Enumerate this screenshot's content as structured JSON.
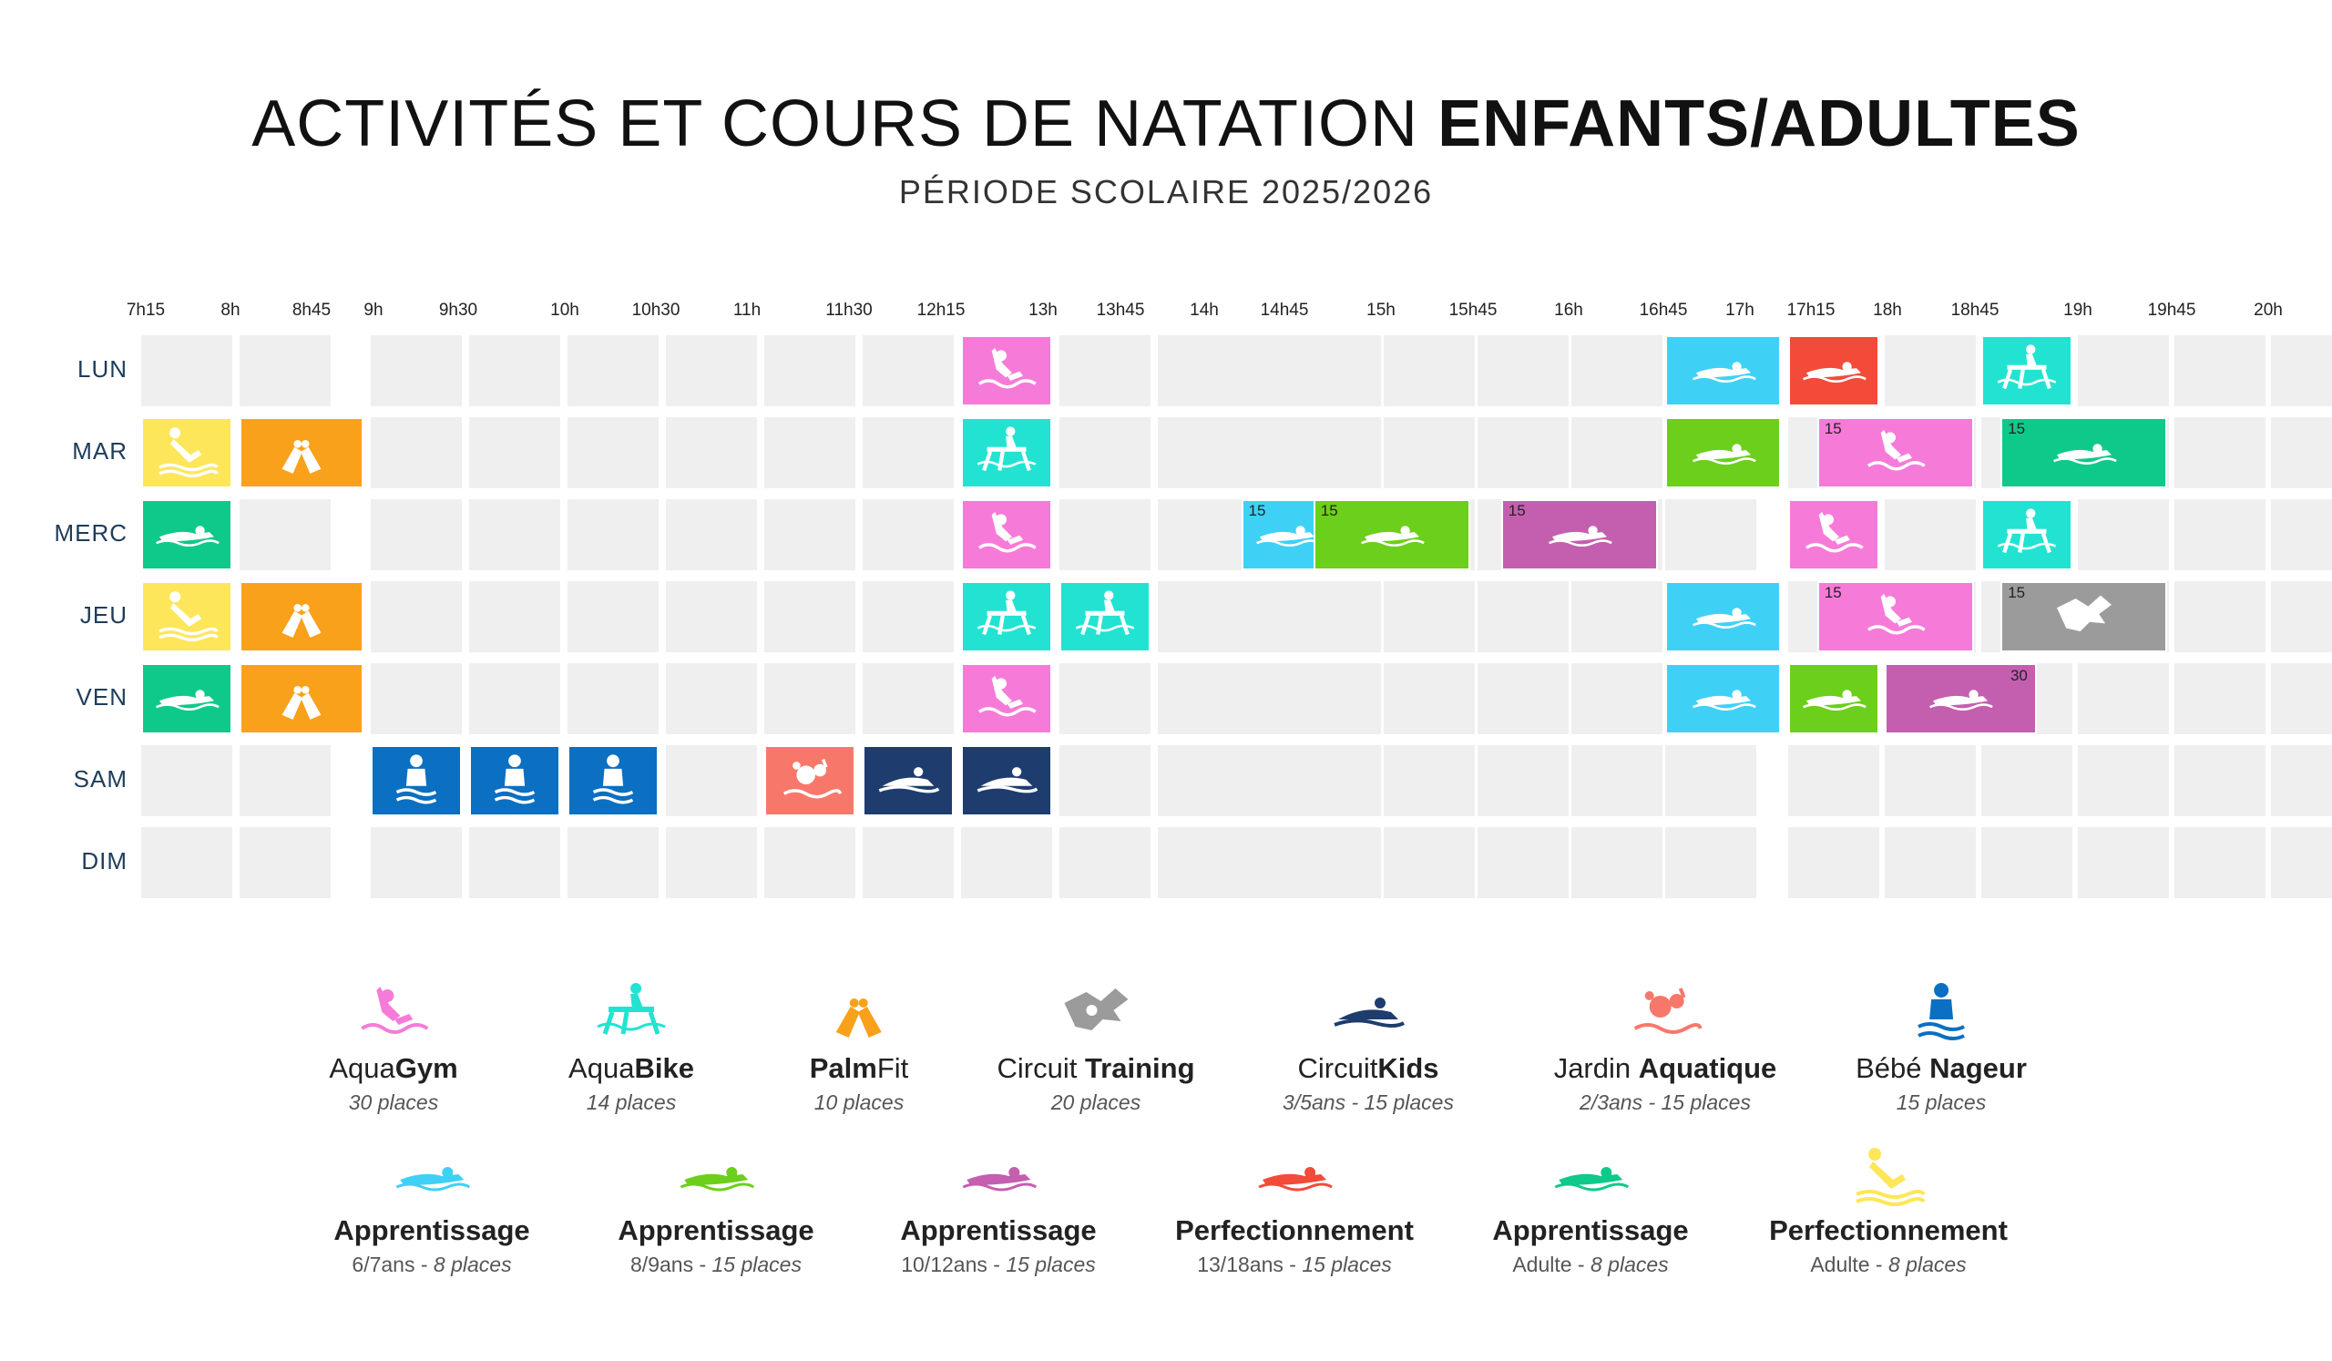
{
  "header": {
    "title_light": "ACTIVITÉS ET COURS DE NATATION",
    "title_bold": "ENFANTS/ADULTES",
    "subtitle": "PÉRIODE SCOLAIRE 2025/2026"
  },
  "time_labels": [
    "7h15",
    "8h",
    "8h45",
    "9h",
    "9h30",
    "10h",
    "10h30",
    "11h",
    "11h30",
    "12h15",
    "13h",
    "13h45",
    "14h",
    "14h45",
    "15h",
    "15h45",
    "16h",
    "16h45",
    "17h",
    "17h15",
    "18h",
    "18h45",
    "19h",
    "19h45",
    "20h"
  ],
  "days": [
    "LUN",
    "MAR",
    "MERC",
    "JEU",
    "VEN",
    "SAM",
    "DIM"
  ],
  "colors": {
    "aquagym": "#f67bd8",
    "aquabike": "#22e3d2",
    "palmfit": "#f9a11b",
    "circuit_training": "#9b9b9b",
    "circuitkids": "#1e3d6e",
    "jardin_aquatique": "#f7786a",
    "bebe_nageur": "#0b6fc2",
    "app_6_7": "#3fd1f5",
    "app_8_9": "#6ccf1b",
    "app_10_12": "#c45fb0",
    "perf_13_18": "#f24b3a",
    "app_adulte": "#0fc98a",
    "perf_adulte": "#fde65a",
    "cell": "#efefef"
  },
  "schedule": [
    {
      "day": 0,
      "slot": 8,
      "span": 1,
      "activity": "aquagym",
      "cap": ""
    },
    {
      "day": 0,
      "slot": 17,
      "span": 1,
      "activity": "app_6_7",
      "cap": ""
    },
    {
      "day": 0,
      "slot": 18,
      "span": 1,
      "activity": "perf_13_18",
      "cap": ""
    },
    {
      "day": 0,
      "slot": 20,
      "span": 1,
      "activity": "aquabike",
      "cap": ""
    },
    {
      "day": 1,
      "slot": 0,
      "span": 1,
      "activity": "perf_adulte",
      "cap": ""
    },
    {
      "day": 1,
      "slot": 1,
      "span": 1,
      "activity": "palmfit",
      "cap": ""
    },
    {
      "day": 1,
      "slot": 8,
      "span": 1,
      "activity": "aquabike",
      "cap": ""
    },
    {
      "day": 1,
      "slot": 17,
      "span": 1,
      "activity": "app_8_9",
      "cap": ""
    },
    {
      "day": 1,
      "slot": 18.3,
      "span": 1.7,
      "activity": "aquagym",
      "cap": "15"
    },
    {
      "day": 1,
      "slot": 20.2,
      "span": 1.8,
      "activity": "app_adulte",
      "cap": "15"
    },
    {
      "day": 2,
      "slot": 0,
      "span": 1,
      "activity": "app_adulte",
      "cap": ""
    },
    {
      "day": 2,
      "slot": 8,
      "span": 1,
      "activity": "aquagym",
      "cap": ""
    },
    {
      "day": 2,
      "slot": 11.25,
      "span": 1.75,
      "activity": "app_6_7",
      "cap": "15"
    },
    {
      "day": 2,
      "slot": 13.25,
      "span": 1.75,
      "activity": "app_8_9",
      "cap": "15"
    },
    {
      "day": 2,
      "slot": 15.25,
      "span": 1.75,
      "activity": "app_10_12",
      "cap": "15"
    },
    {
      "day": 2,
      "slot": 18,
      "span": 1,
      "activity": "aquagym",
      "cap": ""
    },
    {
      "day": 2,
      "slot": 20,
      "span": 1,
      "activity": "aquabike",
      "cap": ""
    },
    {
      "day": 3,
      "slot": 0,
      "span": 1,
      "activity": "perf_adulte",
      "cap": ""
    },
    {
      "day": 3,
      "slot": 1,
      "span": 1,
      "activity": "palmfit",
      "cap": ""
    },
    {
      "day": 3,
      "slot": 8,
      "span": 1,
      "activity": "aquabike",
      "cap": ""
    },
    {
      "day": 3,
      "slot": 9,
      "span": 1,
      "activity": "aquabike",
      "cap": ""
    },
    {
      "day": 3,
      "slot": 17,
      "span": 1,
      "activity": "app_6_7",
      "cap": ""
    },
    {
      "day": 3,
      "slot": 18.3,
      "span": 1.7,
      "activity": "aquagym",
      "cap": "15"
    },
    {
      "day": 3,
      "slot": 20.2,
      "span": 1.8,
      "activity": "circuit_training",
      "cap": "15"
    },
    {
      "day": 4,
      "slot": 0,
      "span": 1,
      "activity": "app_adulte",
      "cap": ""
    },
    {
      "day": 4,
      "slot": 1,
      "span": 1,
      "activity": "palmfit",
      "cap": ""
    },
    {
      "day": 4,
      "slot": 8,
      "span": 1,
      "activity": "aquagym",
      "cap": ""
    },
    {
      "day": 4,
      "slot": 17,
      "span": 1,
      "activity": "app_6_7",
      "cap": ""
    },
    {
      "day": 4,
      "slot": 18,
      "span": 1,
      "activity": "app_8_9",
      "cap": ""
    },
    {
      "day": 4,
      "slot": 19,
      "span": 1.65,
      "activity": "app_10_12",
      "cap": "30"
    },
    {
      "day": 5,
      "slot": 2,
      "span": 1,
      "activity": "bebe_nageur",
      "cap": ""
    },
    {
      "day": 5,
      "slot": 3,
      "span": 1,
      "activity": "bebe_nageur",
      "cap": ""
    },
    {
      "day": 5,
      "slot": 4,
      "span": 1,
      "activity": "bebe_nageur",
      "cap": ""
    },
    {
      "day": 5,
      "slot": 6,
      "span": 1,
      "activity": "jardin_aquatique",
      "cap": ""
    },
    {
      "day": 5,
      "slot": 7,
      "span": 1,
      "activity": "circuitkids",
      "cap": ""
    },
    {
      "day": 5,
      "slot": 8,
      "span": 1,
      "activity": "circuitkids",
      "cap": ""
    }
  ],
  "legend_row1": [
    {
      "key": "aquagym",
      "icon": "aquagym-icon",
      "light": "Aqua",
      "bold": "Gym",
      "bold_first": false,
      "sub": "30 places"
    },
    {
      "key": "aquabike",
      "icon": "aquabike-icon",
      "light": "Aqua",
      "bold": "Bike",
      "bold_first": false,
      "sub": "14 places"
    },
    {
      "key": "palmfit",
      "icon": "palmfit-icon",
      "light": "Fit",
      "bold": "Palm",
      "bold_first": true,
      "sub": "10 places"
    },
    {
      "key": "circuit_training",
      "icon": "circuit-training-icon",
      "light": "Circuit ",
      "bold": "Training",
      "bold_first": false,
      "sub": "20 places"
    },
    {
      "key": "circuitkids",
      "icon": "circuitkids-icon",
      "light": "Circuit",
      "bold": "Kids",
      "bold_first": false,
      "sub": "3/5ans - 15 places"
    },
    {
      "key": "jardin_aquatique",
      "icon": "jardin-aquatique-icon",
      "light": "Jardin ",
      "bold": "Aquatique",
      "bold_first": false,
      "sub": "2/3ans - 15 places"
    },
    {
      "key": "bebe_nageur",
      "icon": "bebe-nageur-icon",
      "light": "Bébé ",
      "bold": "Nageur",
      "bold_first": false,
      "sub": "15 places"
    }
  ],
  "legend_row2": [
    {
      "key": "app_6_7",
      "icon": "swimmer-icon",
      "name": "Apprentissage",
      "age": "6/7ans - ",
      "places": "8 places"
    },
    {
      "key": "app_8_9",
      "icon": "swimmer-icon",
      "name": "Apprentissage",
      "age": "8/9ans - ",
      "places": "15 places"
    },
    {
      "key": "app_10_12",
      "icon": "swimmer-icon",
      "name": "Apprentissage",
      "age": "10/12ans - ",
      "places": "15 places"
    },
    {
      "key": "perf_13_18",
      "icon": "swimmer-icon",
      "name": "Perfectionnement",
      "age": "13/18ans - ",
      "places": "15 places"
    },
    {
      "key": "app_adulte",
      "icon": "swimmer-icon",
      "name": "Apprentissage",
      "age": "Adulte - ",
      "places": "8 places"
    },
    {
      "key": "perf_adulte",
      "icon": "diver-icon",
      "name": "Perfectionnement",
      "age": "Adulte - ",
      "places": "8 places"
    }
  ]
}
